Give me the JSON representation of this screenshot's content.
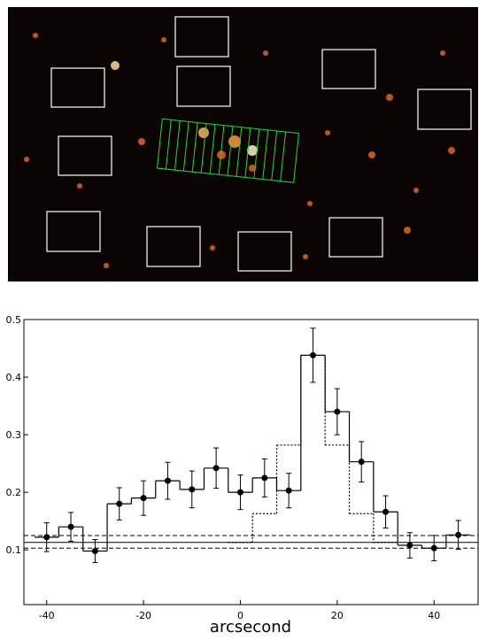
{
  "chart_data": {
    "type": "step",
    "x_label": "arcsecond",
    "x": [
      -40,
      -35,
      -30,
      -25,
      -20,
      -15,
      -10,
      -5,
      0,
      5,
      10,
      15,
      20,
      25,
      30,
      35,
      40,
      45
    ],
    "values": [
      0.122,
      0.14,
      0.098,
      0.18,
      0.19,
      0.22,
      0.205,
      0.242,
      0.2,
      0.225,
      0.203,
      0.438,
      0.34,
      0.253,
      0.166,
      0.108,
      0.103,
      0.126
    ],
    "errors": [
      0.025,
      0.025,
      0.02,
      0.028,
      0.03,
      0.032,
      0.032,
      0.035,
      0.03,
      0.033,
      0.03,
      0.047,
      0.04,
      0.035,
      0.028,
      0.022,
      0.022,
      0.025
    ],
    "model": {
      "x": [
        0,
        5,
        10,
        15,
        20,
        25,
        30
      ],
      "values": [
        0.113,
        0.163,
        0.282,
        0.438,
        0.282,
        0.163,
        0.113
      ]
    },
    "hlines": [
      {
        "value": 0.113,
        "style": "solid"
      },
      {
        "value": 0.125,
        "style": "dashed"
      },
      {
        "value": 0.103,
        "style": "dashed"
      }
    ],
    "color": "#000000",
    "xlim": [
      -44.7,
      49.1
    ],
    "xticks": [
      -40,
      -20,
      0,
      20,
      40
    ],
    "ylim": [
      0.005,
      0.5
    ],
    "yticks": [
      0.1,
      0.2,
      0.3,
      0.4,
      0.5
    ]
  }
}
